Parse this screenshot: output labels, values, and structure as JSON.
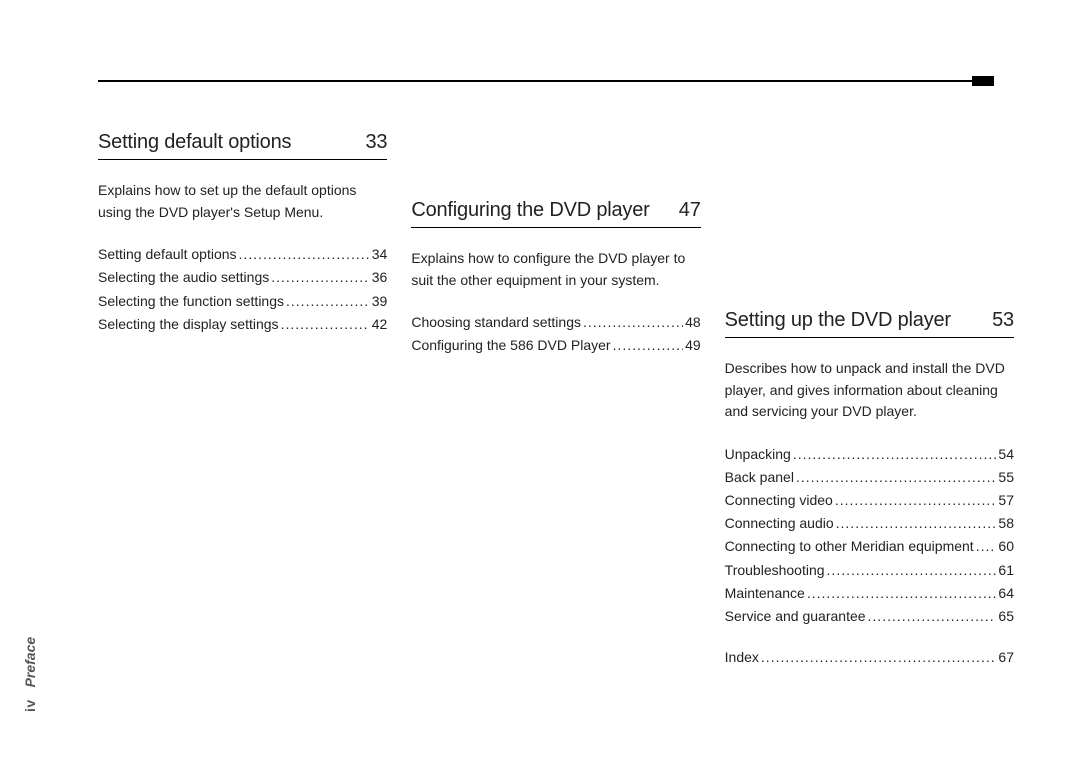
{
  "sidebar": {
    "page_number": "iv",
    "section_name": "Preface"
  },
  "columns": [
    {
      "heading": {
        "title": "Setting default options",
        "page": "33"
      },
      "description": "Explains how to set up the default options using the DVD player's Setup Menu.",
      "entries": [
        {
          "label": "Setting default options",
          "page": "34"
        },
        {
          "label": "Selecting the audio settings",
          "page": "36"
        },
        {
          "label": "Selecting the function settings",
          "page": "39"
        },
        {
          "label": "Selecting the display settings",
          "page": "42"
        }
      ]
    },
    {
      "heading": {
        "title": "Configuring the DVD player",
        "page": "47"
      },
      "description": "Explains how to configure the DVD player to suit the other equipment in your system.",
      "entries": [
        {
          "label": "Choosing standard settings",
          "page": "48"
        },
        {
          "label": "Configuring the 586 DVD Player",
          "page": "49"
        }
      ]
    },
    {
      "heading": {
        "title": "Setting up the DVD player",
        "page": "53"
      },
      "description": "Describes how to unpack and install the DVD player, and gives information about cleaning and servicing your DVD player.",
      "entries": [
        {
          "label": "Unpacking",
          "page": "54"
        },
        {
          "label": "Back panel",
          "page": "55"
        },
        {
          "label": "Connecting video",
          "page": "57"
        },
        {
          "label": "Connecting audio",
          "page": "58"
        },
        {
          "label": "Connecting to other Meridian equipment",
          "page": "60"
        },
        {
          "label": "Troubleshooting",
          "page": "61"
        },
        {
          "label": "Maintenance",
          "page": "64"
        },
        {
          "label": "Service and guarantee",
          "page": "65"
        }
      ],
      "extra": [
        {
          "label": "Index",
          "page": "67"
        }
      ]
    }
  ]
}
